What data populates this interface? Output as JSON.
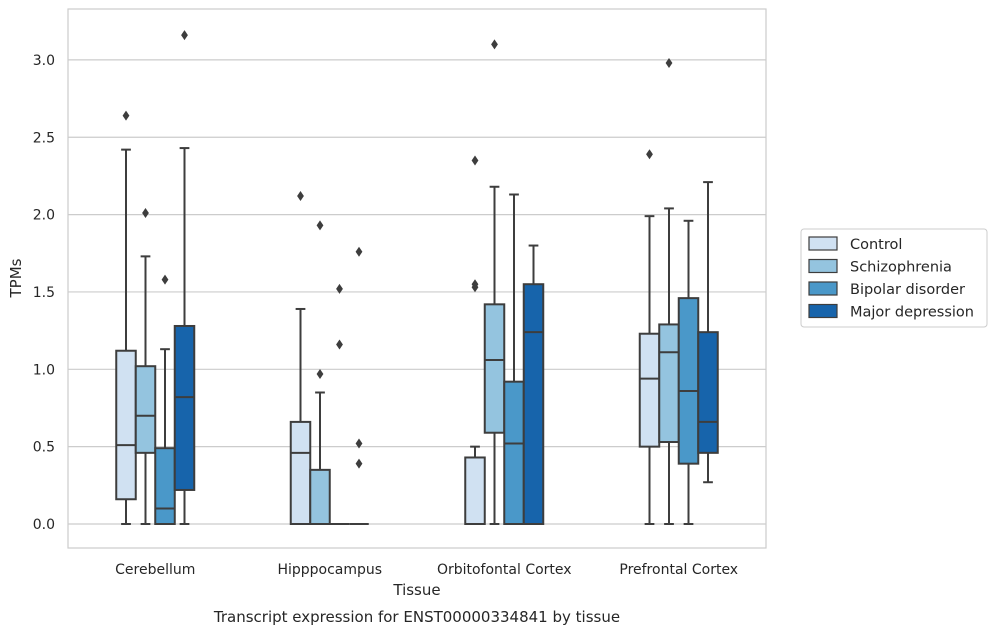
{
  "caption": "Transcript expression for ENST00000334841 by tissue",
  "chart_data": {
    "type": "box",
    "title": "",
    "xlabel": "Tissue",
    "ylabel": "TPMs",
    "ylim": [
      -0.15,
      3.3
    ],
    "yticks": [
      0.0,
      0.5,
      1.0,
      1.5,
      2.0,
      2.5,
      3.0
    ],
    "ytick_labels": [
      "0.0",
      "0.5",
      "1.0",
      "1.5",
      "2.0",
      "2.5",
      "3.0"
    ],
    "grid": "horizontal",
    "legend_position": "right",
    "categories": [
      "Cerebellum",
      "Hipppocampus",
      "Orbitofontal Cortex",
      "Prefrontal Cortex"
    ],
    "series": [
      {
        "name": "Control",
        "color": "#d0e1f2",
        "boxes": [
          {
            "q1": 0.16,
            "median": 0.51,
            "q3": 1.12,
            "whislo": 0.0,
            "whishi": 2.42,
            "fliers": [
              2.64
            ]
          },
          {
            "q1": 0.0,
            "median": 0.46,
            "q3": 0.66,
            "whislo": 0.0,
            "whishi": 1.39,
            "fliers": [
              2.12
            ]
          },
          {
            "q1": 0.0,
            "median": 0.0,
            "q3": 0.43,
            "whislo": 0.0,
            "whishi": 0.5,
            "fliers": [
              1.53,
              1.55,
              2.35
            ]
          },
          {
            "q1": 0.5,
            "median": 0.94,
            "q3": 1.23,
            "whislo": 0.0,
            "whishi": 1.99,
            "fliers": [
              2.39
            ]
          }
        ]
      },
      {
        "name": "Schizophrenia",
        "color": "#94c4df",
        "boxes": [
          {
            "q1": 0.46,
            "median": 0.7,
            "q3": 1.02,
            "whislo": 0.0,
            "whishi": 1.73,
            "fliers": [
              2.01
            ]
          },
          {
            "q1": 0.0,
            "median": 0.0,
            "q3": 0.35,
            "whislo": 0.0,
            "whishi": 0.85,
            "fliers": [
              0.97,
              1.93
            ]
          },
          {
            "q1": 0.59,
            "median": 1.06,
            "q3": 1.42,
            "whislo": 0.0,
            "whishi": 2.18,
            "fliers": [
              3.1
            ]
          },
          {
            "q1": 0.53,
            "median": 1.11,
            "q3": 1.29,
            "whislo": 0.0,
            "whishi": 2.04,
            "fliers": [
              2.98
            ]
          }
        ]
      },
      {
        "name": "Bipolar disorder",
        "color": "#4a98c9",
        "boxes": [
          {
            "q1": 0.0,
            "median": 0.1,
            "q3": 0.49,
            "whislo": 0.0,
            "whishi": 1.13,
            "fliers": [
              1.58
            ]
          },
          {
            "q1": 0.0,
            "median": 0.0,
            "q3": 0.0,
            "whislo": 0.0,
            "whishi": 0.0,
            "fliers": [
              1.16,
              1.52
            ]
          },
          {
            "q1": 0.0,
            "median": 0.52,
            "q3": 0.92,
            "whislo": 0.0,
            "whishi": 2.13,
            "fliers": []
          },
          {
            "q1": 0.39,
            "median": 0.86,
            "q3": 1.46,
            "whislo": 0.0,
            "whishi": 1.96,
            "fliers": []
          }
        ]
      },
      {
        "name": "Major depression",
        "color": "#1764ab",
        "boxes": [
          {
            "q1": 0.22,
            "median": 0.82,
            "q3": 1.28,
            "whislo": 0.0,
            "whishi": 2.43,
            "fliers": [
              3.16
            ]
          },
          {
            "q1": 0.0,
            "median": 0.0,
            "q3": 0.0,
            "whislo": 0.0,
            "whishi": 0.0,
            "fliers": [
              0.39,
              0.52,
              1.76
            ]
          },
          {
            "q1": 0.0,
            "median": 1.24,
            "q3": 1.55,
            "whislo": 0.0,
            "whishi": 1.8,
            "fliers": []
          },
          {
            "q1": 0.46,
            "median": 0.66,
            "q3": 1.24,
            "whislo": 0.27,
            "whishi": 2.21,
            "fliers": []
          }
        ]
      }
    ]
  }
}
